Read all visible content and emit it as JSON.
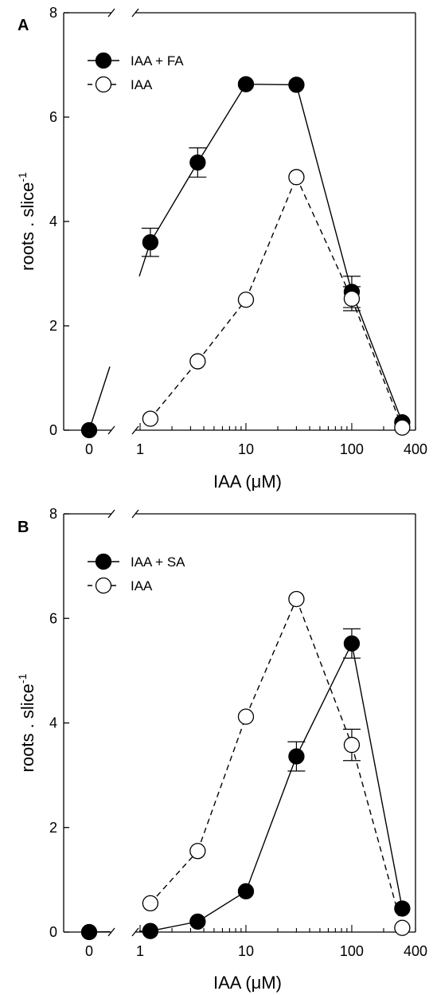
{
  "chart_data": [
    {
      "type": "line",
      "panel_label": "A",
      "xlabel": "IAA (μM)",
      "ylabel": "roots . slice",
      "ylabel_sup": "-1",
      "x_scale": "broken axis: 0, then log 1–400",
      "xlim": [
        1,
        400
      ],
      "ylim": [
        0,
        8
      ],
      "x_ticks": [
        "0",
        "1",
        "10",
        "100",
        "400"
      ],
      "y_ticks": [
        "0",
        "2",
        "4",
        "6",
        "8"
      ],
      "grid": false,
      "legend_position": "top-left",
      "series": [
        {
          "name": "IAA + FA",
          "marker": "filled",
          "line": "solid",
          "color": "#000000",
          "points": [
            {
              "x": 0,
              "y": 0.0
            },
            {
              "x": 1.25,
              "y": 3.6,
              "err": 0.27
            },
            {
              "x": 3.5,
              "y": 5.13,
              "err": 0.28
            },
            {
              "x": 10,
              "y": 6.63
            },
            {
              "x": 30,
              "y": 6.62
            },
            {
              "x": 100,
              "y": 2.65,
              "err": 0.3
            },
            {
              "x": 300,
              "y": 0.15
            }
          ]
        },
        {
          "name": "IAA",
          "marker": "open",
          "line": "dashed",
          "color": "#000000",
          "points": [
            {
              "x": 1.25,
              "y": 0.22
            },
            {
              "x": 3.5,
              "y": 1.32
            },
            {
              "x": 10,
              "y": 2.5
            },
            {
              "x": 30,
              "y": 4.85
            },
            {
              "x": 100,
              "y": 2.52,
              "err": 0.23
            },
            {
              "x": 300,
              "y": 0.05
            }
          ]
        }
      ]
    },
    {
      "type": "line",
      "panel_label": "B",
      "xlabel": "IAA (μM)",
      "ylabel": "roots . slice",
      "ylabel_sup": "-1",
      "x_scale": "broken axis: 0, then log 1–400",
      "xlim": [
        1,
        400
      ],
      "ylim": [
        0,
        8
      ],
      "x_ticks": [
        "0",
        "1",
        "10",
        "100",
        "400"
      ],
      "y_ticks": [
        "0",
        "2",
        "4",
        "6",
        "8"
      ],
      "grid": false,
      "legend_position": "top-left",
      "series": [
        {
          "name": "IAA + SA",
          "marker": "filled",
          "line": "solid",
          "color": "#000000",
          "points": [
            {
              "x": 0,
              "y": 0.0
            },
            {
              "x": 1.25,
              "y": 0.02
            },
            {
              "x": 3.5,
              "y": 0.2
            },
            {
              "x": 10,
              "y": 0.78
            },
            {
              "x": 30,
              "y": 3.36,
              "err": 0.28
            },
            {
              "x": 100,
              "y": 5.52,
              "err": 0.28
            },
            {
              "x": 300,
              "y": 0.45
            }
          ]
        },
        {
          "name": "IAA",
          "marker": "open",
          "line": "dashed",
          "color": "#000000",
          "points": [
            {
              "x": 1.25,
              "y": 0.55
            },
            {
              "x": 3.5,
              "y": 1.55
            },
            {
              "x": 10,
              "y": 4.12
            },
            {
              "x": 30,
              "y": 6.37
            },
            {
              "x": 100,
              "y": 3.58,
              "err": 0.3
            },
            {
              "x": 300,
              "y": 0.08
            }
          ]
        }
      ]
    }
  ]
}
